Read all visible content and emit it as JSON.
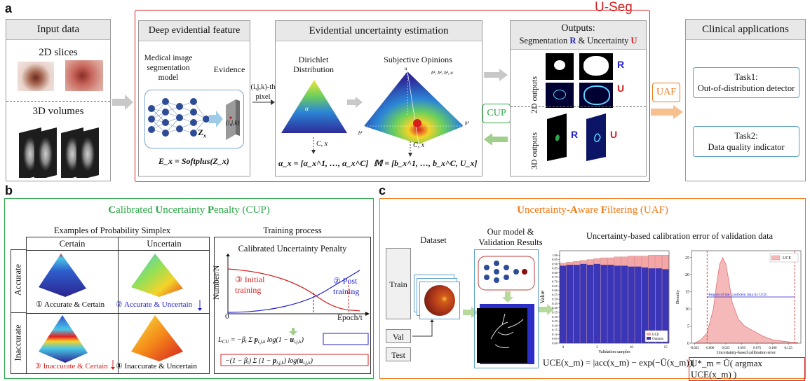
{
  "panels": {
    "a": "a",
    "b": "b",
    "c": "c"
  },
  "useg_title": "U-Seg",
  "input": {
    "title": "Input data",
    "slices_2d": "2D slices",
    "volumes_3d": "3D volumes"
  },
  "deep": {
    "title": "Deep evidential feature",
    "model": "Medical image\nsegmentation\nmodel",
    "evidence": "Evidence",
    "zx": "Z",
    "zx_sub": "x",
    "voxel": "(i,j,k)",
    "pixel_label": "(i,j,k)-th\npixel",
    "formula": "E_x = Softplus(Z_x)"
  },
  "est": {
    "title": "Evidential uncertainty estimation",
    "dirichlet": "Dirichlet\nDistribution",
    "alpha_label": "α",
    "opinions": "Subjective Opinions",
    "cx": "C, x",
    "alpha_formula": "α_x = [α_x^1, …, α_x^C]",
    "m_formula": "𝕄 = [b_x^1, …, b_x^C, U_x]"
  },
  "outputs": {
    "title": "Outputs:",
    "subtitle_pre": "Segmentation ",
    "R": "R",
    "amp": " & Uncertainty ",
    "U": "U",
    "out2d": "2D outputs",
    "out3d": "3D outputs"
  },
  "cup_tag": "CUP",
  "uaf_tag": "UAF",
  "clinical": {
    "title": "Clinical applications",
    "task1": "Task1:\nOut-of-distribution detector",
    "task2": "Task2:\nData quality indicator"
  },
  "b_panel": {
    "title_parts": [
      "C",
      "alibrated ",
      "U",
      "ncertainty ",
      "P",
      "enalty (CUP)"
    ],
    "examples": "Examples of Probability Simplex",
    "certain": "Certain",
    "uncertain": "Uncertain",
    "accurate": "Accurate",
    "inaccurate": "Inaccurate",
    "cells": [
      "① Accurate & Certain",
      "② Accurate & Uncertain",
      "③ Inaccurate & Certain",
      "④ Inaccurate & Uncertain"
    ],
    "training_process": "Training process",
    "chart_title": "Calibrated Uncertainty Penalty",
    "ylabel": "Number/N",
    "xlabel": "Epoch/t",
    "zero": "0",
    "initial": "③  Initial\ntraining",
    "post": "②  Post\ntraining"
  },
  "c_panel": {
    "title_parts": [
      "U",
      "ncertainty-",
      "A",
      "ware ",
      "F",
      "iltering (UAF)"
    ],
    "dataset": "Dataset",
    "train": "Train",
    "val": "Val",
    "test": "Test",
    "model_results": "Our model &\nValidation Results",
    "calib_title": "Uncertainty-based calibration error of validation data",
    "bar_ylabel": "Value",
    "bar_xlabel": "Validation samples",
    "legend_uce": "UCE",
    "legend_outputs": "Outputs",
    "density_ylabel": "Density",
    "density_xlabel": "Uncertainty-based calibration error",
    "density_legend": "UCE",
    "region": "Region of the Confident data by UCE",
    "uce_formula": "UCE(x_m) = |acc(x_m) − exp(−Ũ(x_m))|",
    "ustar_formula": "U*_m = Ũ( argmax UCE(x_m) )"
  },
  "chart_data": [
    {
      "type": "bar",
      "xlabel": "Validation samples",
      "ylabel": "Value",
      "x": [
        0,
        1,
        2,
        3,
        4,
        5,
        6,
        7,
        8,
        9,
        10,
        11,
        12,
        13,
        14,
        15
      ],
      "ylim": [
        0,
        1.05
      ],
      "xticks": [
        0,
        5,
        10,
        15
      ],
      "yticks": [
        "0.00",
        "0.05",
        "0.10",
        "0.15",
        "0.20",
        "0.25",
        "0.30",
        "0.35",
        "0.40",
        "0.45",
        "0.50",
        "0.55",
        "0.60",
        "0.65",
        "0.70",
        "0.75",
        "0.80",
        "0.85",
        "0.90",
        "0.95",
        "1.00"
      ],
      "series": [
        {
          "name": "UCE",
          "values": [
            0.91,
            0.92,
            0.93,
            0.94,
            0.95,
            0.96,
            0.97,
            0.97,
            0.98,
            0.98,
            0.99,
            0.99,
            0.99,
            1.0,
            1.0,
            1.0
          ]
        },
        {
          "name": "Outputs",
          "values": [
            0.88,
            0.89,
            0.89,
            0.9,
            0.89,
            0.9,
            0.89,
            0.89,
            0.88,
            0.88,
            0.87,
            0.87,
            0.86,
            0.85,
            0.85,
            0.84
          ]
        }
      ],
      "colors": {
        "UCE": "#f4a6a6",
        "Outputs": "#3b36b8"
      }
    },
    {
      "type": "area",
      "xlabel": "Uncertainty-based calibration error",
      "ylabel": "Density",
      "series": [
        {
          "name": "UCE",
          "x": [
            -0.025,
            -0.015,
            -0.005,
            0.005,
            0.01,
            0.015,
            0.02,
            0.025,
            0.03,
            0.035,
            0.045,
            0.055,
            0.065,
            0.075,
            0.085,
            0.1,
            0.115,
            0.13,
            0.14
          ],
          "y": [
            0,
            1,
            3,
            10,
            17,
            23,
            25,
            23,
            18,
            12,
            7,
            5,
            4,
            3,
            2,
            1,
            0.6,
            0.3,
            0.2
          ]
        }
      ],
      "xlim": [
        -0.03,
        0.145
      ],
      "ylim": [
        0,
        27
      ],
      "xticks": [
        "-0.025",
        "0.000",
        "0.025",
        "0.050",
        "0.075",
        "0.100",
        "0.125"
      ],
      "yticks": [
        "0",
        "5",
        "10",
        "15",
        "20",
        "25"
      ],
      "thresholds": [
        -0.005,
        0.135
      ],
      "colors": {
        "fill": "#f6b9b9",
        "line": "#e07070"
      }
    }
  ],
  "colors": {
    "red": "#d32020",
    "blue": "#2222cc",
    "green": "#2ea84a",
    "orange": "#f07a1a",
    "gray_arrow": "#c8c8c8"
  }
}
